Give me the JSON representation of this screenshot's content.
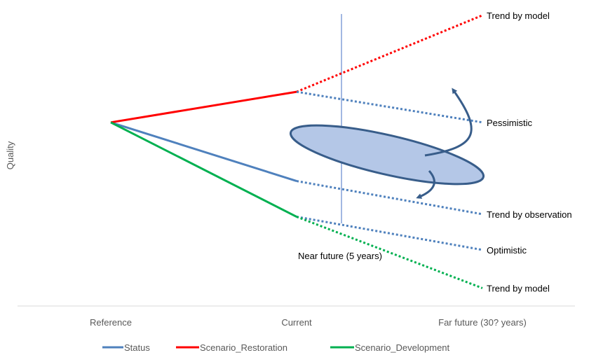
{
  "chart_data": {
    "type": "line",
    "title": "",
    "xlabel": "",
    "ylabel": "Quality",
    "categories": [
      "Reference",
      "Current",
      "Far future (30? years)"
    ],
    "grid": false,
    "legend_position": "bottom",
    "colors": {
      "status": "#4f81bd",
      "restoration": "#ff0000",
      "development": "#00b050",
      "ellipse_fill": "#b4c7e7",
      "ellipse_stroke": "#385d8a",
      "arrow": "#385d8a",
      "marker_line": "#4472c4",
      "axis": "#d9d9d9"
    },
    "series": [
      {
        "name": "Status",
        "key": "status",
        "values": [
          0.72,
          0.49,
          null
        ]
      },
      {
        "name": "Scenario_Restoration",
        "key": "restoration",
        "values": [
          0.72,
          0.84,
          null
        ]
      },
      {
        "name": "Scenario_Development",
        "key": "development",
        "values": [
          0.72,
          0.35,
          null
        ]
      }
    ],
    "projections": [
      {
        "from_series": "restoration",
        "to": 1.14,
        "label": "Trend by model"
      },
      {
        "from_series": "restoration",
        "to": 0.72,
        "label": "Pessimistic"
      },
      {
        "from_series": "status",
        "to": 0.36,
        "label": "Trend by observation"
      },
      {
        "from_series": "development",
        "to": 0.22,
        "label": "Optimistic"
      },
      {
        "from_series": "development",
        "to": 0.07,
        "label": "Trend by model"
      }
    ],
    "marker": {
      "label": "Near future (5 years)",
      "position": 0.24
    }
  }
}
